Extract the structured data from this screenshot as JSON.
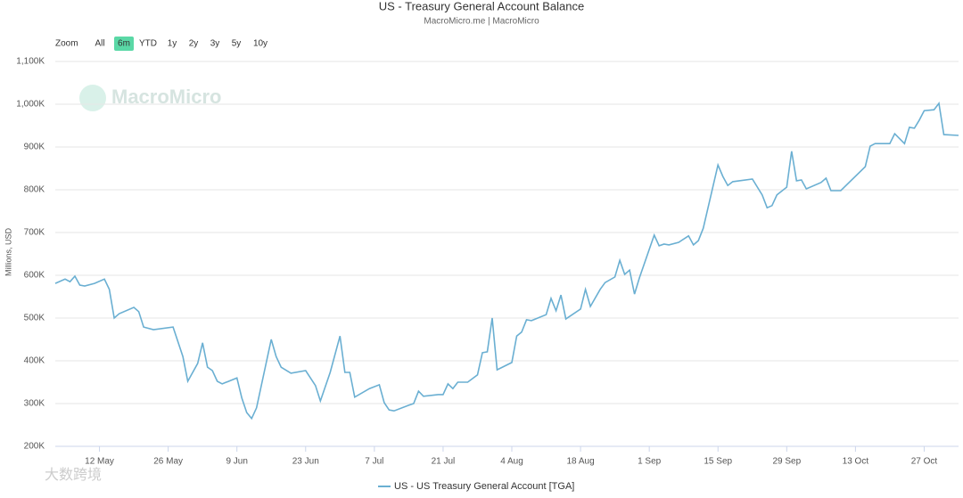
{
  "chart_data": {
    "type": "line",
    "title": "US - Treasury General Account Balance",
    "subtitle": "MacroMicro.me | MacroMicro",
    "watermark": "MacroMicro",
    "corner_watermark": "大数跨境",
    "range_selector": {
      "label": "Zoom",
      "buttons": [
        "All",
        "6m",
        "YTD",
        "1y",
        "2y",
        "3y",
        "5y",
        "10y"
      ],
      "selected": "6m"
    },
    "y_label": "Millions, USD",
    "ylim": [
      200000,
      1100000
    ],
    "yticks": [
      {
        "value": 200000,
        "label": "200K"
      },
      {
        "value": 300000,
        "label": "300K"
      },
      {
        "value": 400000,
        "label": "400K"
      },
      {
        "value": 500000,
        "label": "500K"
      },
      {
        "value": 600000,
        "label": "600K"
      },
      {
        "value": 700000,
        "label": "700K"
      },
      {
        "value": 800000,
        "label": "800K"
      },
      {
        "value": 900000,
        "label": "900K"
      },
      {
        "value": 1000000,
        "label": "1,000K"
      },
      {
        "value": 1100000,
        "label": "1,100K"
      }
    ],
    "xlim": [
      "05-03",
      "11-03"
    ],
    "xticks": [
      {
        "value": "05-12",
        "label": "12 May"
      },
      {
        "value": "05-26",
        "label": "26 May"
      },
      {
        "value": "06-09",
        "label": "9 Jun"
      },
      {
        "value": "06-23",
        "label": "23 Jun"
      },
      {
        "value": "07-07",
        "label": "7 Jul"
      },
      {
        "value": "07-21",
        "label": "21 Jul"
      },
      {
        "value": "08-04",
        "label": "4 Aug"
      },
      {
        "value": "08-18",
        "label": "18 Aug"
      },
      {
        "value": "09-01",
        "label": "1 Sep"
      },
      {
        "value": "09-15",
        "label": "15 Sep"
      },
      {
        "value": "09-29",
        "label": "29 Sep"
      },
      {
        "value": "10-13",
        "label": "13 Oct"
      },
      {
        "value": "10-27",
        "label": "27 Oct"
      }
    ],
    "grid": true,
    "legend": "bottom",
    "x": [
      "05-03",
      "05-05",
      "05-06",
      "05-07",
      "05-08",
      "05-09",
      "05-11",
      "05-13",
      "05-14",
      "05-15",
      "05-16",
      "05-19",
      "05-20",
      "05-21",
      "05-23",
      "05-27",
      "05-29",
      "05-30",
      "06-01",
      "06-02",
      "06-03",
      "06-04",
      "06-05",
      "06-06",
      "06-09",
      "06-10",
      "06-11",
      "06-12",
      "06-13",
      "06-16",
      "06-17",
      "06-18",
      "06-20",
      "06-23",
      "06-25",
      "06-26",
      "06-28",
      "06-30",
      "07-01",
      "07-02",
      "07-03",
      "07-06",
      "07-08",
      "07-09",
      "07-10",
      "07-11",
      "07-14",
      "07-15",
      "07-16",
      "07-17",
      "07-20",
      "07-21",
      "07-22",
      "07-23",
      "07-24",
      "07-26",
      "07-28",
      "07-29",
      "07-30",
      "07-31",
      "08-01",
      "08-04",
      "08-05",
      "08-06",
      "08-07",
      "08-08",
      "08-11",
      "08-12",
      "08-13",
      "08-14",
      "08-15",
      "08-18",
      "08-19",
      "08-20",
      "08-22",
      "08-23",
      "08-25",
      "08-26",
      "08-27",
      "08-28",
      "08-29",
      "08-30",
      "09-02",
      "09-03",
      "09-04",
      "09-05",
      "09-07",
      "09-09",
      "09-10",
      "09-11",
      "09-12",
      "09-15",
      "09-16",
      "09-17",
      "09-18",
      "09-22",
      "09-24",
      "09-25",
      "09-26",
      "09-27",
      "09-29",
      "09-30",
      "10-01",
      "10-02",
      "10-03",
      "10-06",
      "10-07",
      "10-08",
      "10-10",
      "10-15",
      "10-16",
      "10-17",
      "10-20",
      "10-21",
      "10-23",
      "10-24",
      "10-25",
      "10-26",
      "10-27",
      "10-29",
      "10-30",
      "10-31",
      "11-03"
    ],
    "series": [
      {
        "name": "US - US Treasury General Account [TGA]",
        "color": "#6aafd2",
        "values": [
          581000,
          591000,
          585000,
          598000,
          577000,
          575000,
          581000,
          591000,
          567000,
          500000,
          510000,
          525000,
          515000,
          479000,
          473000,
          479000,
          410000,
          352000,
          394000,
          442000,
          385000,
          377000,
          352000,
          346000,
          360000,
          313000,
          279000,
          265000,
          290000,
          450000,
          410000,
          385000,
          371000,
          377000,
          342000,
          306000,
          373000,
          458000,
          373000,
          373000,
          315000,
          335000,
          344000,
          302000,
          285000,
          283000,
          296000,
          300000,
          329000,
          317000,
          321000,
          321000,
          346000,
          335000,
          350000,
          350000,
          367000,
          419000,
          421000,
          500000,
          379000,
          396000,
          458000,
          467000,
          496000,
          494000,
          508000,
          546000,
          517000,
          554000,
          498000,
          521000,
          567000,
          527000,
          567000,
          583000,
          596000,
          635000,
          602000,
          612000,
          556000,
          594000,
          694000,
          669000,
          673000,
          671000,
          677000,
          692000,
          671000,
          681000,
          710000,
          858000,
          831000,
          810000,
          819000,
          825000,
          788000,
          758000,
          763000,
          788000,
          806000,
          890000,
          821000,
          823000,
          802000,
          817000,
          827000,
          798000,
          798000,
          854000,
          902000,
          908000,
          908000,
          931000,
          908000,
          946000,
          944000,
          963000,
          985000,
          987000,
          1002000,
          929000,
          927000
        ]
      }
    ]
  }
}
